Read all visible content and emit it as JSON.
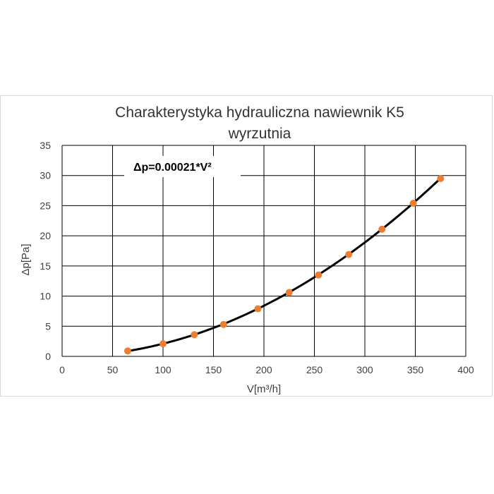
{
  "chart_data": {
    "type": "scatter",
    "title": [
      "Charakterystyka hydrauliczna nawiewnik K5",
      "wyrzutnia"
    ],
    "xlabel": "V[m³/h]",
    "ylabel": "Δp[Pa]",
    "xlim": [
      0,
      400
    ],
    "ylim": [
      0,
      35
    ],
    "x_ticks": [
      "0",
      "50",
      "100",
      "150",
      "200",
      "250",
      "300",
      "350",
      "400"
    ],
    "y_ticks": [
      "0",
      "5",
      "10",
      "15",
      "20",
      "25",
      "30",
      "35"
    ],
    "grid": true,
    "annotation": "Δp=0.00021*V²",
    "trendline": {
      "coefficient": 0.00021,
      "exponent": 2,
      "x_range": [
        65,
        375
      ],
      "color": "#000000"
    },
    "series": [
      {
        "marker_color": "#ED7D31",
        "x": [
          65,
          100,
          131,
          160,
          194,
          225,
          254,
          284,
          317,
          348,
          375
        ],
        "y": [
          0.9,
          2.1,
          3.6,
          5.3,
          7.9,
          10.6,
          13.5,
          16.9,
          21.1,
          25.4,
          29.5
        ]
      }
    ]
  }
}
